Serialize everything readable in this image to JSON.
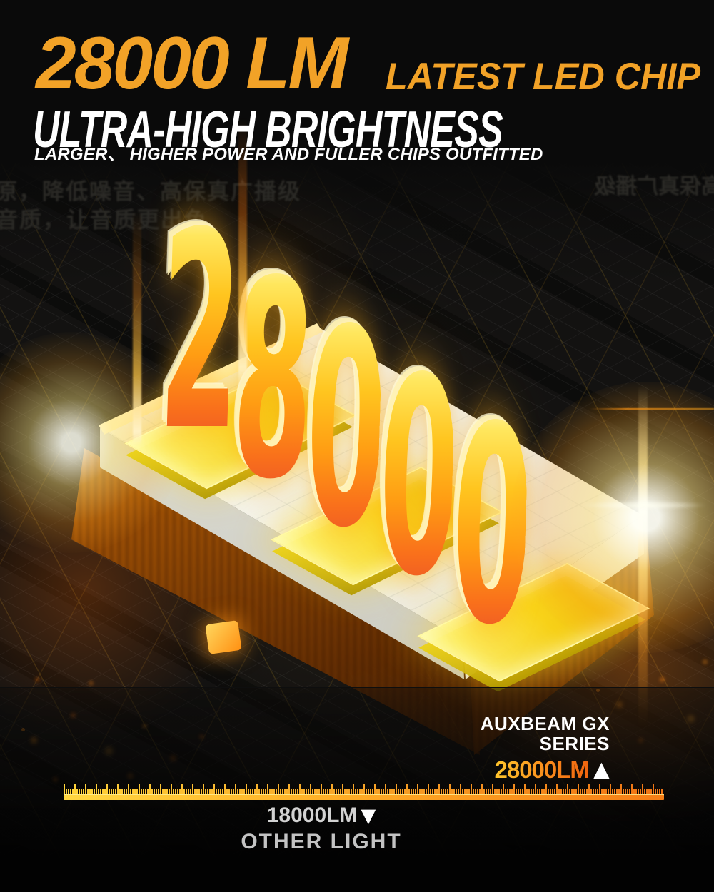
{
  "header": {
    "lumen_headline": "28000 LM",
    "headline_suffix": "LATEST LED CHIP",
    "subheadline": "ULTRA-HIGH BRIGHTNESS",
    "tagline": "LARGER、 HIGHER POWER AND FULLER CHIPS OUTFITTED"
  },
  "background_watermarks": {
    "left_line1": "还原，降低噪音、高保真广播级",
    "left_line2": "音质，让音质更出色",
    "right_mirrored": "高保真广播级"
  },
  "artwork": {
    "lumen_value": "28000",
    "digits": [
      "2",
      "8",
      "0",
      "0",
      "0"
    ]
  },
  "comparison": {
    "product_name_line1": "AUXBEAM GX",
    "product_name_line2": "SERIES",
    "product_lumens": "28000LM",
    "product_marker": "▲",
    "competitor_lumens": "18000LM",
    "competitor_marker": "▼",
    "competitor_name": "OTHER LIGHT"
  },
  "colors": {
    "accent_orange": "#F2A227",
    "headline_text": "#FFFFFF",
    "digit_gradient_top": "#FFF8C5",
    "digit_gradient_bottom": "#EA4E2A",
    "ruler_yellow": "#FFD43A",
    "ruler_orange": "#F07414",
    "product_value_left": "#FFC52C",
    "product_value_right": "#EF630E",
    "competitor_text": "#C9C9C9",
    "background": "#0A0A0A"
  }
}
